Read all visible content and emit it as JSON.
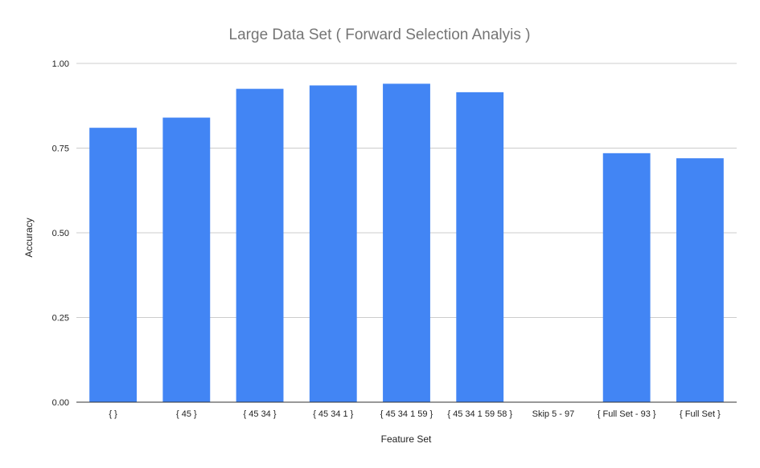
{
  "chart_data": {
    "type": "bar",
    "title": "Large Data Set ( Forward Selection Analyis )",
    "xlabel": "Feature Set",
    "ylabel": "Accuracy",
    "categories": [
      "{ }",
      "{ 45 }",
      "{ 45 34 }",
      "{ 45 34 1 }",
      "{ 45 34 1 59 }",
      "{ 45 34 1 59 58 }",
      "Skip 5 - 97",
      "{ Full Set - 93 }",
      "{ Full Set }"
    ],
    "values": [
      0.81,
      0.84,
      0.925,
      0.935,
      0.94,
      0.915,
      null,
      0.735,
      0.72
    ],
    "ylim": [
      0,
      1
    ],
    "yticks": [
      0,
      0.25,
      0.5,
      0.75,
      1
    ],
    "ytick_labels": [
      "0.00",
      "0.25",
      "0.50",
      "0.75",
      "1.00"
    ],
    "grid": true,
    "legend": "none",
    "colors": {
      "bar": "#4285f4",
      "title": "#757575",
      "grid": "#cccccc",
      "text": "#222222"
    }
  }
}
